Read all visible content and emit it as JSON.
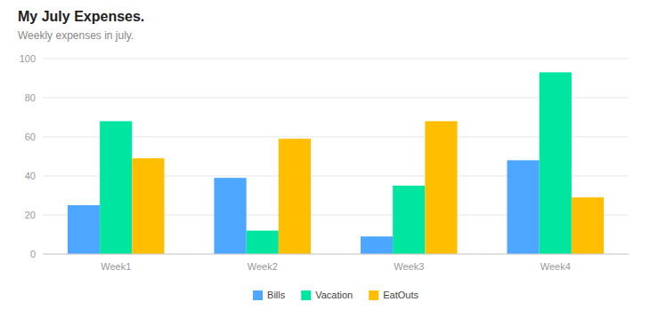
{
  "chart_data": {
    "type": "bar",
    "title": "My July Expenses.",
    "subtitle": "Weekly expenses in july.",
    "categories": [
      "Week1",
      "Week2",
      "Week3",
      "Week4"
    ],
    "series": [
      {
        "name": "Bills",
        "color": "#4da6ff",
        "values": [
          25,
          39,
          9,
          48
        ]
      },
      {
        "name": "Vacation",
        "color": "#00e6a0",
        "values": [
          68,
          12,
          35,
          93
        ]
      },
      {
        "name": "EatOuts",
        "color": "#ffbf00",
        "values": [
          49,
          59,
          68,
          29
        ]
      }
    ],
    "ylim": [
      0,
      100
    ],
    "yticks": [
      0,
      20,
      40,
      60,
      80,
      100
    ],
    "grid": true,
    "legend": "bottom"
  }
}
